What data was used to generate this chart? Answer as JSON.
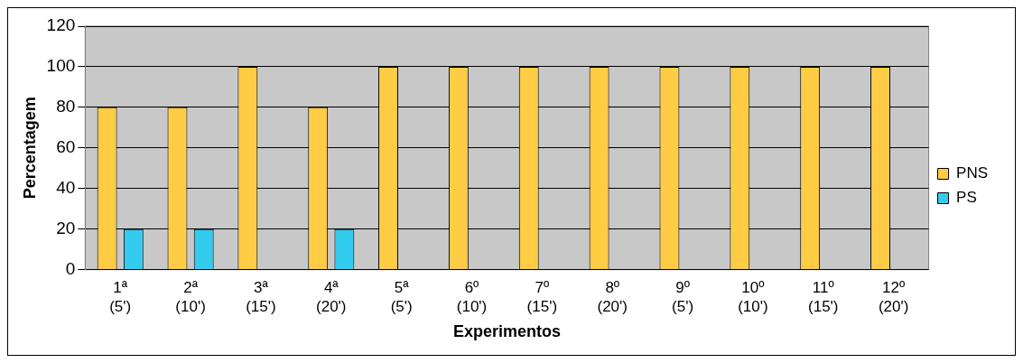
{
  "chart_data": {
    "type": "bar",
    "xlabel": "Experimentos",
    "ylabel": "Percentagem",
    "categories": [
      "1ª\n(5')",
      "2ª\n(10')",
      "3ª\n(15')",
      "4ª\n(20')",
      "5ª\n(5')",
      "6º\n(10')",
      "7º\n(15')",
      "8º\n(20')",
      "9º\n(5')",
      "10º\n(10')",
      "11º\n(15')",
      "12º\n(20')"
    ],
    "series": [
      {
        "name": "PNS",
        "color": "#ffcc44",
        "values": [
          80,
          80,
          100,
          80,
          100,
          100,
          100,
          100,
          100,
          100,
          100,
          100
        ]
      },
      {
        "name": "PS",
        "color": "#33ccee",
        "values": [
          20,
          20,
          0,
          20,
          0,
          0,
          0,
          0,
          0,
          0,
          0,
          0
        ]
      }
    ],
    "ylim": [
      0,
      120
    ],
    "yticks": [
      0,
      20,
      40,
      60,
      80,
      100,
      120
    ],
    "grid": "y",
    "legend": "right"
  }
}
